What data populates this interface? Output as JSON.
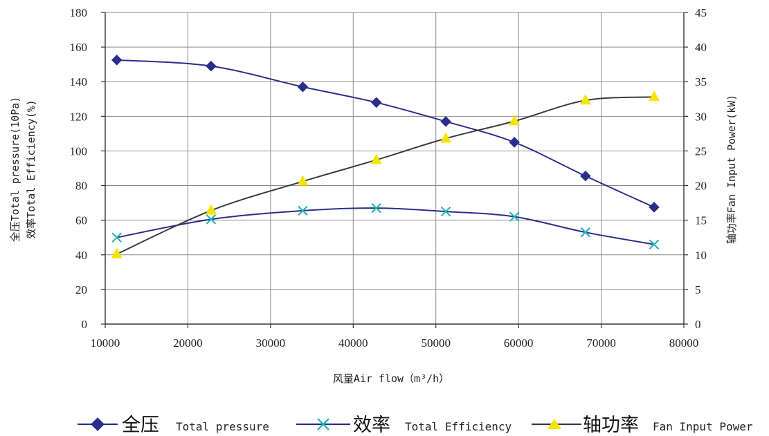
{
  "chart_data": {
    "type": "line",
    "title": "",
    "x": {
      "label": "风量Air flow（m³/h）",
      "range": [
        10000,
        80000
      ],
      "ticks": [
        10000,
        20000,
        30000,
        40000,
        50000,
        60000,
        70000,
        80000
      ]
    },
    "y_left": {
      "label_line1": "全压Total pressure(10Pa)",
      "label_line2": "效率Total Efficiency(%)",
      "range": [
        0,
        180
      ],
      "ticks": [
        0,
        20,
        40,
        60,
        80,
        100,
        120,
        140,
        160,
        180
      ]
    },
    "y_right": {
      "label": "轴功率Fan Input Power(kW)",
      "range": [
        0,
        45
      ],
      "ticks": [
        0,
        5,
        10,
        15,
        20,
        25,
        30,
        35,
        40,
        45
      ]
    },
    "grid": true,
    "legend_position": "bottom",
    "series": [
      {
        "name_cn": "全压",
        "name_en": "Total pressure",
        "axis": "left",
        "marker": "diamond",
        "color": "#2a2d8a",
        "marker_color": "#2a2d8a",
        "x": [
          11400,
          22800,
          33900,
          42800,
          51200,
          59500,
          68100,
          76400
        ],
        "y": [
          152.5,
          149,
          137,
          128,
          117,
          105,
          85.5,
          67.5
        ]
      },
      {
        "name_cn": "效率",
        "name_en": "Total Efficiency",
        "axis": "left",
        "marker": "x",
        "color": "#2a2d8a",
        "marker_color": "#2ab5b5",
        "x": [
          11400,
          22800,
          33900,
          42800,
          51200,
          59500,
          68100,
          76400
        ],
        "y": [
          50,
          60.5,
          65.5,
          67,
          65,
          62,
          53,
          46
        ]
      },
      {
        "name_cn": "轴功率",
        "name_en": "Fan Input Power",
        "axis": "right",
        "marker": "triangle",
        "color": "#3a3a3a",
        "marker_color": "#f2e600",
        "x": [
          11400,
          22800,
          33900,
          42800,
          51200,
          59500,
          68100,
          76400
        ],
        "y": [
          10.1,
          16.4,
          20.6,
          23.7,
          26.8,
          29.3,
          32.3,
          32.8
        ]
      }
    ]
  }
}
